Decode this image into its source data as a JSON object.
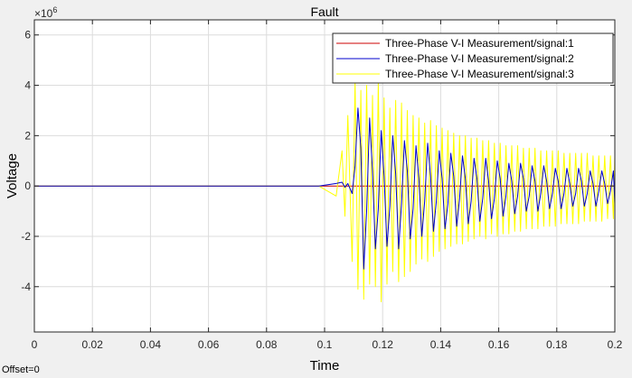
{
  "window": {
    "offset_text": "Offset=0",
    "exponent_base": "×10",
    "exponent_power": "6"
  },
  "chart_data": {
    "type": "line",
    "title": "Fault",
    "xlabel": "Time",
    "ylabel": "Voltage",
    "xlim": [
      0,
      0.2
    ],
    "ylim": [
      -5.8,
      6.6
    ],
    "grid": true,
    "legend_position": "top-right",
    "x_ticks": [
      0,
      0.02,
      0.04,
      0.06,
      0.08,
      0.1,
      0.12,
      0.14,
      0.16,
      0.18,
      0.2
    ],
    "x_tick_labels": [
      "0",
      "0.02",
      "0.04",
      "0.06",
      "0.08",
      "0.1",
      "0.12",
      "0.14",
      "0.16",
      "0.18",
      "0.2"
    ],
    "y_ticks": [
      -4,
      -2,
      0,
      2,
      4,
      6
    ],
    "y_tick_labels": [
      "-4",
      "-2",
      "0",
      "2",
      "4",
      "6"
    ],
    "colors": {
      "plot_background": "#ffffff",
      "grid": "#dcdcdc",
      "axes": "#262626"
    },
    "series": [
      {
        "name": "Three-Phase V-I Measurement/signal:1",
        "color": "#cc0000",
        "x": [
          0,
          0.1,
          0.2
        ],
        "values": [
          0,
          0,
          0
        ]
      },
      {
        "name": "Three-Phase V-I Measurement/signal:2",
        "color": "#0000cc",
        "x": [
          0,
          0.098,
          0.104,
          0.106,
          0.107,
          0.108,
          0.1095,
          0.1105,
          0.1115,
          0.1125,
          0.1135,
          0.1145,
          0.1155,
          0.1165,
          0.1175,
          0.1185,
          0.1195,
          0.1205,
          0.1215,
          0.1225,
          0.1235,
          0.1245,
          0.1255,
          0.1265,
          0.1275,
          0.1285,
          0.1295,
          0.1305,
          0.1315,
          0.1325,
          0.1335,
          0.1345,
          0.1355,
          0.1365,
          0.1375,
          0.1385,
          0.1395,
          0.1405,
          0.1415,
          0.1425,
          0.1435,
          0.1445,
          0.1455,
          0.1465,
          0.1475,
          0.1485,
          0.1495,
          0.1505,
          0.1515,
          0.1525,
          0.1535,
          0.1545,
          0.1555,
          0.1565,
          0.1575,
          0.1585,
          0.1595,
          0.1605,
          0.1615,
          0.1625,
          0.1635,
          0.1645,
          0.1655,
          0.1665,
          0.1675,
          0.1685,
          0.1695,
          0.1705,
          0.1715,
          0.1725,
          0.1735,
          0.1745,
          0.1755,
          0.1765,
          0.1775,
          0.1785,
          0.1795,
          0.1805,
          0.1815,
          0.1825,
          0.1835,
          0.1845,
          0.1855,
          0.1865,
          0.1875,
          0.1885,
          0.1895,
          0.1905,
          0.1915,
          0.1925,
          0.1935,
          0.1945,
          0.1955,
          0.1965,
          0.1975,
          0.1985,
          0.1995,
          0.2
        ],
        "values": [
          0,
          0,
          0.1,
          0.15,
          -0.05,
          0.1,
          -0.3,
          0.8,
          3.1,
          1.5,
          -3.3,
          -1.0,
          2.7,
          0.6,
          -2.5,
          -0.9,
          2.2,
          0.4,
          -2.4,
          -0.8,
          2.0,
          0.5,
          -2.5,
          -0.7,
          1.8,
          0.6,
          -2.1,
          -0.9,
          1.6,
          0.3,
          -2.0,
          -0.6,
          1.7,
          0.4,
          -1.8,
          -0.6,
          1.4,
          0.3,
          -1.7,
          -0.7,
          1.3,
          0.4,
          -1.6,
          -0.5,
          1.2,
          0.3,
          -1.5,
          -0.6,
          1.1,
          0.3,
          -1.4,
          -0.5,
          1.1,
          0.2,
          -1.3,
          -0.5,
          1.0,
          0.3,
          -1.2,
          -0.4,
          0.9,
          0.2,
          -1.1,
          -0.4,
          0.9,
          0.3,
          -1.0,
          -0.4,
          0.8,
          0.2,
          -1.0,
          -0.3,
          0.8,
          0.2,
          -0.9,
          -0.3,
          0.7,
          0.2,
          -0.9,
          -0.3,
          0.7,
          0.1,
          -0.8,
          -0.3,
          0.7,
          0.2,
          -0.8,
          -0.3,
          0.6,
          0.1,
          -0.8,
          -0.2,
          0.6,
          0.1,
          -0.7,
          -0.2,
          0.6,
          -0.7
        ]
      },
      {
        "name": "Three-Phase V-I Measurement/signal:3",
        "color": "#ffff00",
        "x": [
          0,
          0.098,
          0.104,
          0.106,
          0.107,
          0.108,
          0.1095,
          0.1105,
          0.1115,
          0.1125,
          0.1135,
          0.1145,
          0.1155,
          0.1165,
          0.1175,
          0.1185,
          0.1195,
          0.1205,
          0.1215,
          0.1225,
          0.1235,
          0.1245,
          0.1255,
          0.1265,
          0.1275,
          0.1285,
          0.1295,
          0.1305,
          0.1315,
          0.1325,
          0.1335,
          0.1345,
          0.1355,
          0.1365,
          0.1375,
          0.1385,
          0.1395,
          0.1405,
          0.1415,
          0.1425,
          0.1435,
          0.1445,
          0.1455,
          0.1465,
          0.1475,
          0.1485,
          0.1495,
          0.1505,
          0.1515,
          0.1525,
          0.1535,
          0.1545,
          0.1555,
          0.1565,
          0.1575,
          0.1585,
          0.1595,
          0.1605,
          0.1615,
          0.1625,
          0.1635,
          0.1645,
          0.1655,
          0.1665,
          0.1675,
          0.1685,
          0.1695,
          0.1705,
          0.1715,
          0.1725,
          0.1735,
          0.1745,
          0.1755,
          0.1765,
          0.1775,
          0.1785,
          0.1795,
          0.1805,
          0.1815,
          0.1825,
          0.1835,
          0.1845,
          0.1855,
          0.1865,
          0.1875,
          0.1885,
          0.1895,
          0.1905,
          0.1915,
          0.1925,
          0.1935,
          0.1945,
          0.1955,
          0.1965,
          0.1975,
          0.1985,
          0.1995,
          0.2
        ],
        "values": [
          0,
          0,
          -0.4,
          1.4,
          -1.2,
          2.8,
          -3.0,
          4.2,
          -4.1,
          3.8,
          -4.5,
          4.0,
          -3.9,
          3.6,
          -4.0,
          4.1,
          -4.6,
          3.5,
          -3.9,
          3.1,
          -3.4,
          3.4,
          -3.8,
          3.3,
          -3.6,
          3.0,
          -3.4,
          2.8,
          -3.1,
          2.7,
          -2.9,
          2.5,
          -3.0,
          2.6,
          -2.8,
          2.4,
          -2.6,
          2.3,
          -2.5,
          2.2,
          -2.4,
          2.1,
          -2.3,
          2.0,
          -2.3,
          2.0,
          -2.2,
          1.9,
          -2.1,
          1.9,
          -2.0,
          1.8,
          -2.1,
          1.8,
          -1.9,
          1.7,
          -2.0,
          1.7,
          -1.9,
          1.6,
          -1.9,
          1.6,
          -1.8,
          1.6,
          -1.8,
          1.5,
          -1.7,
          1.5,
          -1.7,
          1.5,
          -1.7,
          1.4,
          -1.6,
          1.4,
          -1.6,
          1.4,
          -1.6,
          1.4,
          -1.5,
          1.3,
          -1.5,
          1.3,
          -1.5,
          1.3,
          -1.5,
          1.3,
          -1.4,
          1.3,
          -1.4,
          1.2,
          -1.4,
          1.2,
          -1.4,
          1.2,
          -1.3,
          1.2,
          -1.3,
          1.2
        ]
      }
    ]
  }
}
